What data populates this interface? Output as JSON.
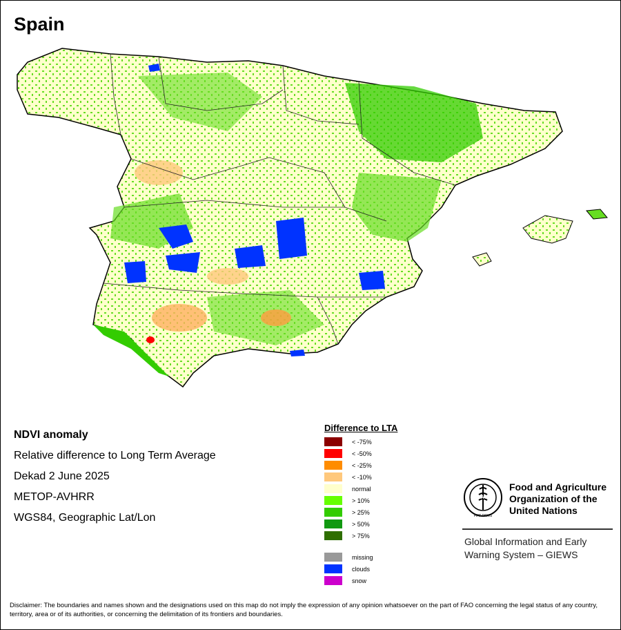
{
  "title": "Spain",
  "info": {
    "product": "NDVI anomaly",
    "description": "Relative difference to Long Term Average",
    "period": "Dekad 2 June 2025",
    "sensor": "METOP-AVHRR",
    "projection": "WGS84, Geographic Lat/Lon"
  },
  "legend": {
    "title": "Difference to LTA",
    "classes": [
      {
        "label": "< -75%",
        "color": "#8b0000"
      },
      {
        "label": "< -50%",
        "color": "#ff0000"
      },
      {
        "label": "< -25%",
        "color": "#ff8c00"
      },
      {
        "label": "< -10%",
        "color": "#ffc87c"
      },
      {
        "label": "normal",
        "color": "#ffffcc"
      },
      {
        "label": "> 10%",
        "color": "#66ff00"
      },
      {
        "label": "> 25%",
        "color": "#33cc00"
      },
      {
        "label": "> 50%",
        "color": "#119911"
      },
      {
        "label": "> 75%",
        "color": "#2e6e00"
      }
    ],
    "other": [
      {
        "label": "missing",
        "color": "#999999"
      },
      {
        "label": "clouds",
        "color": "#0033ff"
      },
      {
        "label": "snow",
        "color": "#cc00cc"
      }
    ]
  },
  "fao": {
    "name_line1": "Food and Agriculture",
    "name_line2": "Organization of the",
    "name_line3": "United Nations",
    "logo_text": "FAO",
    "logo_motto": "FIAT PANIS"
  },
  "giews": {
    "line1": "Global Information and Early",
    "line2": "Warning System – GIEWS"
  },
  "disclaimer": "Disclaimer: The boundaries and names shown and the designations used on this map do not imply the expression of any opinion whatsoever on the part of FAO concerning the legal status of any country, territory, area or of its authorities, or concerning the delimitation of its frontiers and boundaries."
}
